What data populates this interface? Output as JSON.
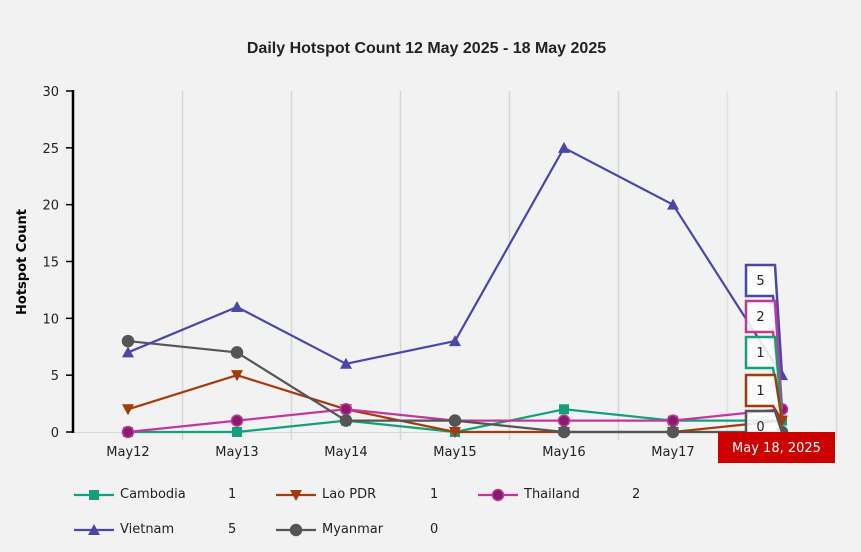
{
  "chart_data": {
    "type": "line",
    "title": "Daily Hotspot Count 12 May 2025 - 18 May 2025",
    "xlabel": "",
    "ylabel": "Hotspot Count",
    "ylim": [
      0,
      30
    ],
    "yticks": [
      "0",
      "5",
      "10",
      "15",
      "20",
      "25",
      "30"
    ],
    "categories": [
      "May12",
      "May13",
      "May14",
      "May15",
      "May16",
      "May17",
      "May18"
    ],
    "grid": "vertical",
    "legend_position": "bottom",
    "series": [
      {
        "name": "Cambodia",
        "color": "#13a07b",
        "marker": "square",
        "values": [
          0,
          0,
          1,
          0,
          2,
          1,
          1
        ],
        "legend_value": "1"
      },
      {
        "name": "Lao PDR",
        "color": "#a33b0c",
        "marker": "triangle-down",
        "values": [
          2,
          5,
          2,
          0,
          0,
          0,
          1
        ],
        "legend_value": "1"
      },
      {
        "name": "Thailand",
        "color": "#c0399a",
        "marker": "circle",
        "marker_fill": "#8b1a6e",
        "values": [
          0,
          1,
          2,
          1,
          1,
          1,
          2
        ],
        "legend_value": "2"
      },
      {
        "name": "Vietnam",
        "color": "#4a47a8",
        "marker": "triangle-up",
        "values": [
          7,
          11,
          6,
          8,
          25,
          20,
          5
        ],
        "legend_value": "5"
      },
      {
        "name": "Myanmar",
        "color": "#555555",
        "marker": "circle",
        "values": [
          8,
          7,
          1,
          1,
          0,
          0,
          0
        ],
        "legend_value": "0"
      }
    ],
    "tooltip": {
      "category": "May18",
      "date_label": "May 18, 2025",
      "date_bg": "#cc0000",
      "values": [
        {
          "series": "Vietnam",
          "value": "5"
        },
        {
          "series": "Thailand",
          "value": "2"
        },
        {
          "series": "Cambodia",
          "value": "1"
        },
        {
          "series": "Lao PDR",
          "value": "1"
        },
        {
          "series": "Myanmar",
          "value": "0"
        }
      ]
    }
  }
}
